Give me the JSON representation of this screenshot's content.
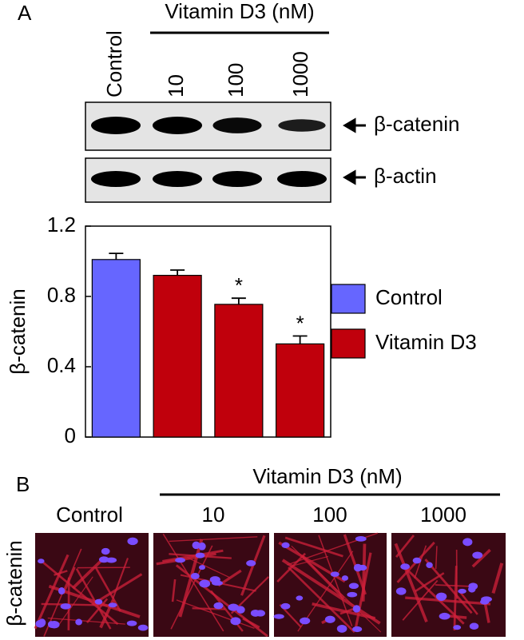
{
  "panels": {
    "a": "A",
    "b": "B"
  },
  "blot": {
    "group_label": "Vitamin D3 (nM)",
    "lane_labels": [
      "Control",
      "10",
      "100",
      "1000"
    ],
    "bands": [
      "β-catenin",
      "β-actin"
    ]
  },
  "chart_data": {
    "type": "bar",
    "y_label": "β-catenin",
    "categories": [
      null,
      null,
      null,
      null
    ],
    "series": [
      {
        "name": "Control",
        "color": "#6666ff",
        "values": [
          1.01,
          null,
          null,
          null
        ],
        "errors": [
          0.035,
          null,
          null,
          null
        ]
      },
      {
        "name": "Vitamin D3",
        "color": "#c0000c",
        "values": [
          null,
          0.92,
          0.755,
          0.53
        ],
        "errors": [
          null,
          0.03,
          0.035,
          0.045
        ]
      }
    ],
    "significance": [
      null,
      null,
      "*",
      "*"
    ],
    "ylim": [
      0,
      1.2
    ],
    "yticks": [
      0,
      0.4,
      0.8,
      1.2
    ],
    "grid": false,
    "legend": "right"
  },
  "micrographs": {
    "group_label": "Vitamin D3 (nM)",
    "labels": [
      "Control",
      "10",
      "100",
      "1000"
    ],
    "row_label": "β-catenin"
  }
}
